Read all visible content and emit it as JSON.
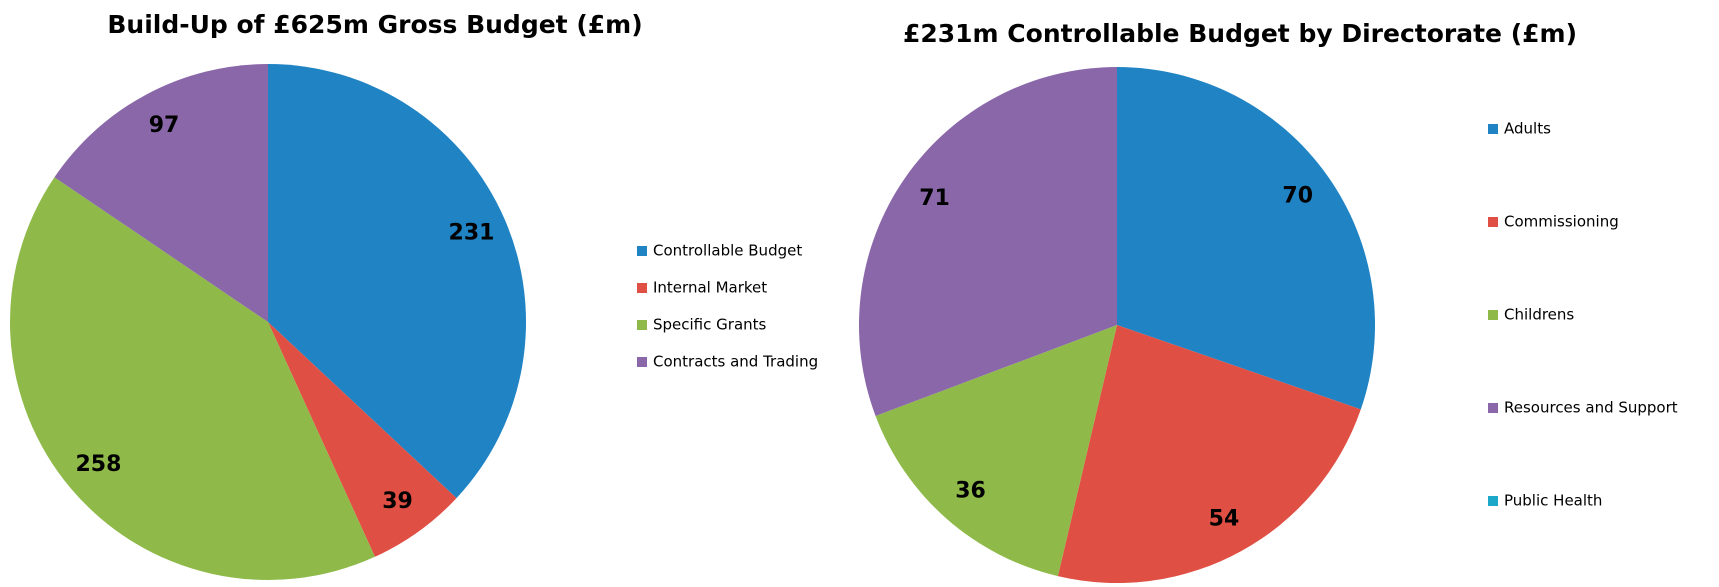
{
  "chart_data": [
    {
      "type": "pie",
      "title": "Build-Up of £625m Gross Budget (£m)",
      "categories": [
        "Controllable Budget",
        "Internal Market",
        "Specific Grants",
        "Contracts and Trading"
      ],
      "values": [
        231,
        39,
        258,
        97
      ],
      "colors": [
        "#1f83c4",
        "#e04f43",
        "#8fba4a",
        "#8a67a9"
      ]
    },
    {
      "type": "pie",
      "title": "£231m Controllable Budget by Directorate (£m)",
      "categories": [
        "Adults",
        "Commissioning",
        "Childrens",
        "Resources and Support",
        "Public Health"
      ],
      "values": [
        70,
        54,
        36,
        71,
        0
      ],
      "colors": [
        "#1f83c4",
        "#e04f43",
        "#8fba4a",
        "#8a67a9",
        "#1ca9c9"
      ]
    }
  ]
}
